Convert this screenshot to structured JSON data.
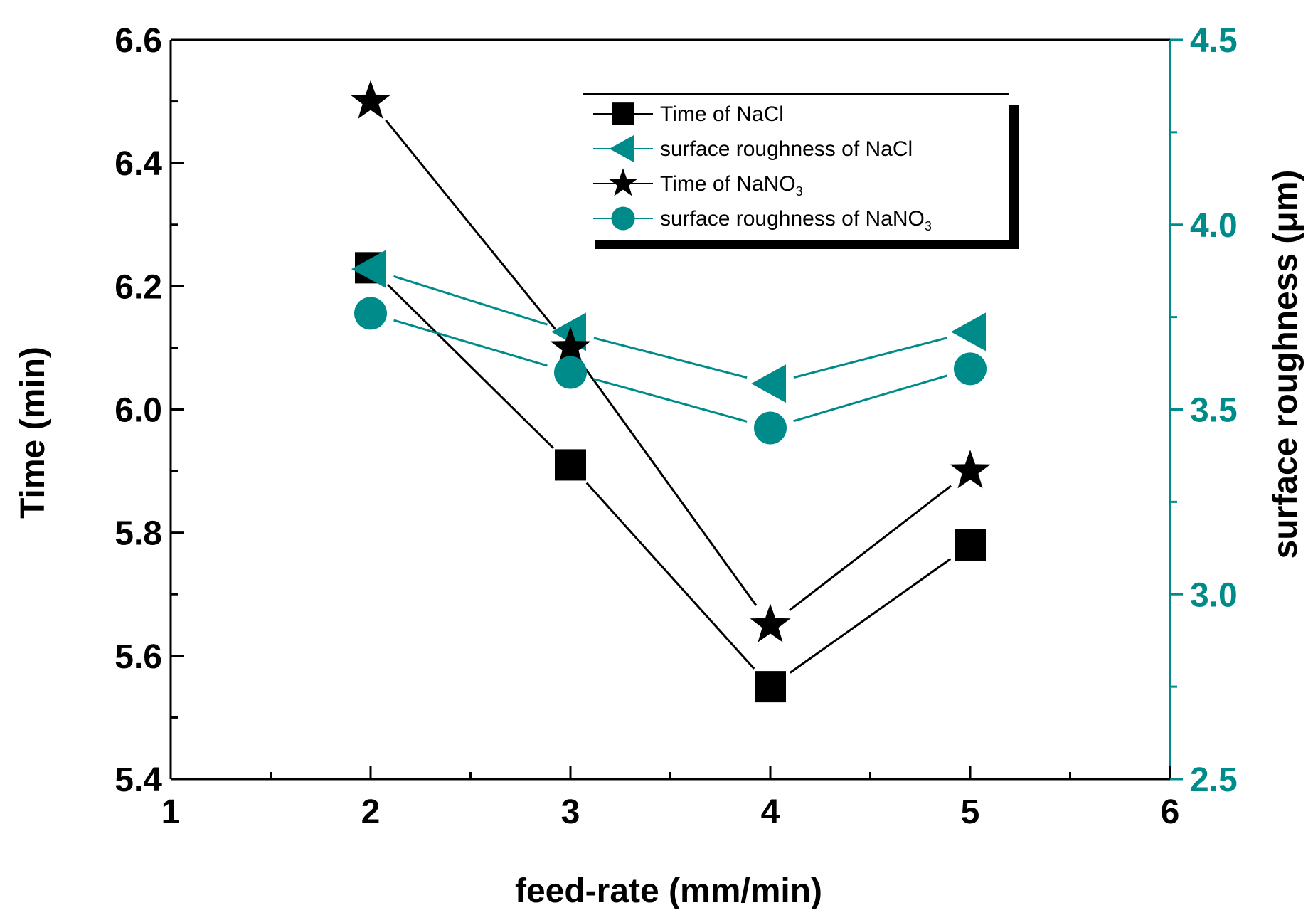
{
  "chart_data": {
    "type": "line",
    "x": [
      2,
      3,
      4,
      5
    ],
    "xlabel": "feed-rate (mm/min)",
    "ylabel": "Time (min)",
    "y2label": "surface roughness (μm)",
    "xlim": [
      1,
      6
    ],
    "ylim": [
      5.4,
      6.6
    ],
    "y2lim": [
      2.5,
      4.5
    ],
    "x_ticks": [
      "1",
      "2",
      "3",
      "4",
      "5",
      "6"
    ],
    "y_ticks": [
      "5.4",
      "5.6",
      "5.8",
      "6.0",
      "6.2",
      "6.4",
      "6.6"
    ],
    "y2_ticks": [
      "2.5",
      "3.0",
      "3.5",
      "4.0",
      "4.5"
    ],
    "series": [
      {
        "name": "Time of NaCl",
        "axis": "left",
        "marker": "square",
        "color": "#000000",
        "values": [
          6.23,
          5.91,
          5.55,
          5.78
        ]
      },
      {
        "name": "surface roughness of NaCl",
        "axis": "right",
        "marker": "triangle-left",
        "color": "#008b8b",
        "values": [
          3.88,
          3.71,
          3.57,
          3.71
        ]
      },
      {
        "name": "Time of NaNO",
        "sub": "3",
        "axis": "left",
        "marker": "star",
        "color": "#000000",
        "values": [
          6.5,
          6.1,
          5.65,
          5.9
        ]
      },
      {
        "name": "surface roughness of NaNO",
        "sub": "3",
        "axis": "right",
        "marker": "circle",
        "color": "#008b8b",
        "values": [
          3.76,
          3.6,
          3.45,
          3.61
        ]
      }
    ],
    "legend_position": "top-right",
    "colors": {
      "left_axis": "#000000",
      "right_axis": "#008b8b"
    }
  }
}
